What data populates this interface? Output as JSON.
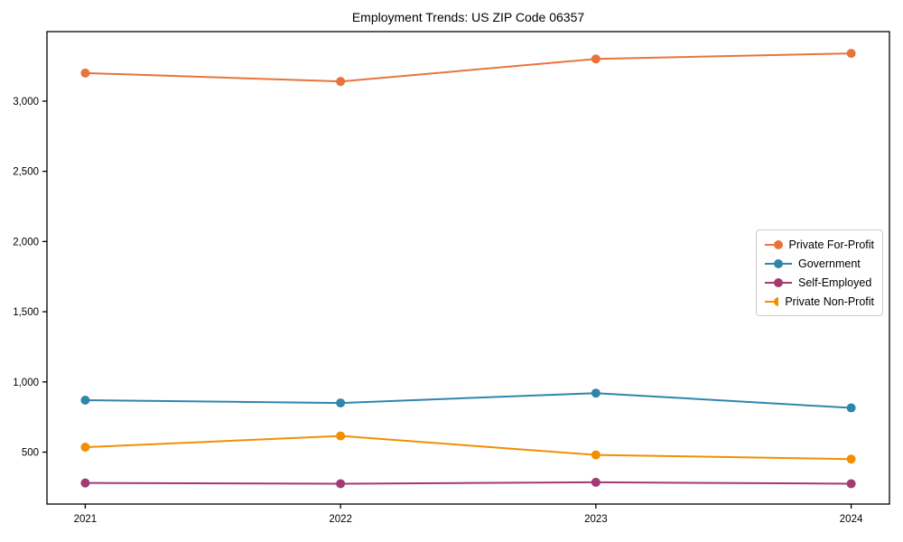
{
  "title": "Employment Trends: US ZIP Code 06357",
  "chart_data": {
    "type": "line",
    "title": "Employment Trends: US ZIP Code 06357",
    "xlabel": "",
    "ylabel": "",
    "x": [
      2021,
      2022,
      2023,
      2024
    ],
    "x_tick_labels": [
      "2021",
      "2022",
      "2023",
      "2024"
    ],
    "y_ticks": [
      500,
      1000,
      1500,
      2000,
      2500,
      3000
    ],
    "y_tick_labels": [
      "500",
      "1,000",
      "1,500",
      "2,000",
      "2,500",
      "3,000"
    ],
    "xlim": [
      2020.85,
      2024.15
    ],
    "ylim": [
      130,
      3495
    ],
    "grid": false,
    "legend_position": "center right",
    "marker": "circle",
    "marker_radius": 5,
    "line_width": 2,
    "frame_color": "#000000",
    "series": [
      {
        "name": "Private For-Profit",
        "color": "#E8743B",
        "values": [
          3200,
          3140,
          3300,
          3340
        ]
      },
      {
        "name": "Government",
        "color": "#2E86AB",
        "values": [
          870,
          850,
          920,
          815
        ]
      },
      {
        "name": "Self-Employed",
        "color": "#A23B72",
        "values": [
          280,
          275,
          285,
          275
        ]
      },
      {
        "name": "Private Non-Profit",
        "color": "#F18F01",
        "values": [
          535,
          615,
          480,
          450
        ]
      }
    ]
  }
}
